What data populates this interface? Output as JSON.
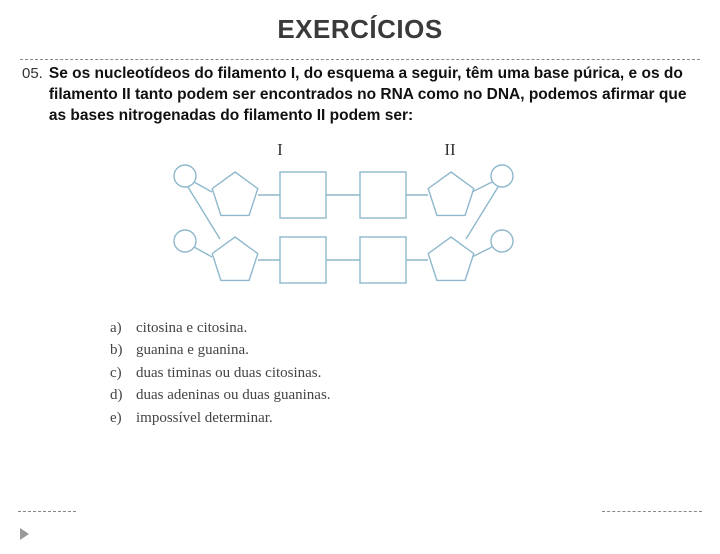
{
  "title": "EXERCÍCIOS",
  "question": {
    "number": "05.",
    "text": "Se os nucleotídeos do filamento I, do esquema a seguir, têm uma base púrica, e os do filamento II tanto podem ser encontrados no RNA como no DNA, podemos afirmar que as bases nitrogenadas do filamento II podem ser:"
  },
  "diagram": {
    "labels": {
      "left": "I",
      "right": "II"
    },
    "colors": {
      "stroke": "#8fb8cc",
      "fill": "#ffffff",
      "label": "#333333"
    },
    "strokeWidth": 1.4
  },
  "answers": [
    {
      "letter": "a)",
      "text": "citosina e citosina."
    },
    {
      "letter": "b)",
      "text": "guanina e guanina."
    },
    {
      "letter": "c)",
      "text": "duas timinas ou duas citosinas."
    },
    {
      "letter": "d)",
      "text": "duas adeninas ou duas guaninas."
    },
    {
      "letter": "e)",
      "text": "impossível determinar."
    }
  ]
}
